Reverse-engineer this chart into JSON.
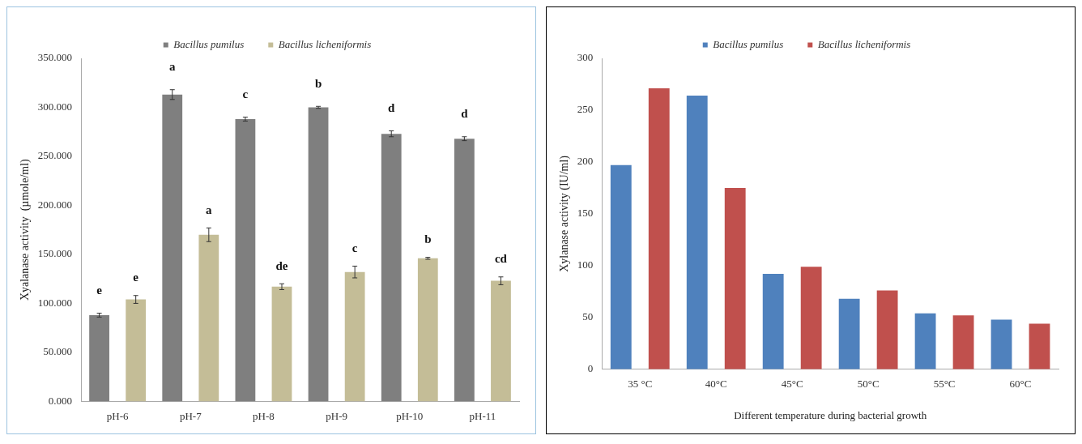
{
  "chart_data": [
    {
      "type": "bar",
      "ylabel": "Xyalanase activity  (µmole/ml)",
      "categories": [
        "pH-6",
        "pH-7",
        "pH-8",
        "pH-9",
        "pH-10",
        "pH-11"
      ],
      "series": [
        {
          "name": "Bacillus pumilus",
          "color": "#7f7f7f",
          "values": [
            88,
            313,
            288,
            300,
            273,
            268
          ],
          "errors": [
            2,
            5,
            2,
            1,
            3,
            2
          ]
        },
        {
          "name": "Bacillus licheniformis",
          "color": "#c4bd97",
          "values": [
            104,
            170,
            117,
            132,
            146,
            123
          ],
          "errors": [
            4,
            7,
            3,
            6,
            1,
            4
          ]
        }
      ],
      "ylim": [
        0,
        350
      ],
      "yticks": [
        {
          "value": 0,
          "label": "0.000"
        },
        {
          "value": 50,
          "label": "50.000"
        },
        {
          "value": 100,
          "label": "100.000"
        },
        {
          "value": 150,
          "label": "150.000"
        },
        {
          "value": 200,
          "label": "200.000"
        },
        {
          "value": 250,
          "label": "250.000"
        },
        {
          "value": 300,
          "label": "300.000"
        },
        {
          "value": 350,
          "label": "350.000"
        }
      ],
      "grid": false,
      "legend": "top",
      "annotations": [
        "e",
        "e",
        "a",
        "a",
        "c",
        "de",
        "b",
        "c",
        "d",
        "b",
        "d",
        "cd"
      ]
    },
    {
      "type": "bar",
      "ylabel": "Xylanase activity (IU/ml)",
      "xlabel": "Different temperature during bacterial growth",
      "categories": [
        "35 °C",
        "40°C",
        "45°C",
        "50°C",
        "55°C",
        "60°C"
      ],
      "series": [
        {
          "name": "Bacillus pumilus",
          "color": "#4f81bd",
          "values": [
            197,
            264,
            92,
            68,
            54,
            48
          ]
        },
        {
          "name": "Bacillus licheniformis",
          "color": "#c0504d",
          "values": [
            271,
            175,
            99,
            76,
            52,
            44
          ]
        }
      ],
      "ylim": [
        0,
        300
      ],
      "yticks": [
        0,
        50,
        100,
        150,
        200,
        250,
        300
      ],
      "grid": false,
      "legend": "top"
    }
  ]
}
